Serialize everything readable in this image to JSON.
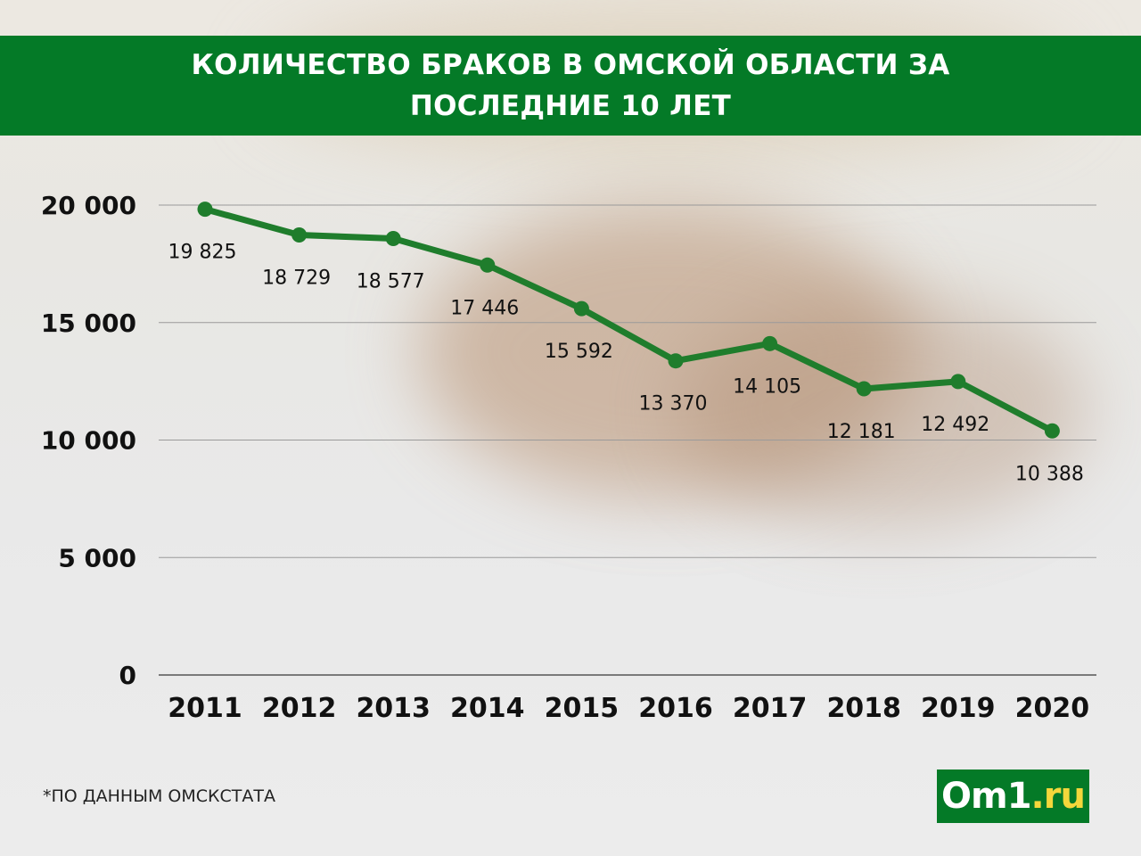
{
  "header": {
    "title_line1": "КОЛИЧЕСТВО БРАКОВ В ОМСКОЙ ОБЛАСТИ ЗА",
    "title_line2": "ПОСЛЕДНИЕ 10 ЛЕТ"
  },
  "footer": {
    "source_note": "*ПО ДАННЫМ ОМСКСТАТА",
    "logo_main": "Om1",
    "logo_accent": ".ru"
  },
  "colors": {
    "title_bg": "#047a27",
    "line": "#1f7d2c",
    "logo_accent": "#f4d73b"
  },
  "chart_data": {
    "type": "line",
    "title": "КОЛИЧЕСТВО БРАКОВ В ОМСКОЙ ОБЛАСТИ ЗА ПОСЛЕДНИЕ 10 ЛЕТ",
    "categories": [
      "2011",
      "2012",
      "2013",
      "2014",
      "2015",
      "2016",
      "2017",
      "2018",
      "2019",
      "2020"
    ],
    "values": [
      19825,
      18729,
      18577,
      17446,
      15592,
      13370,
      14105,
      12181,
      12492,
      10388
    ],
    "value_labels": [
      "19 825",
      "18 729",
      "18 577",
      "17 446",
      "15 592",
      "13 370",
      "14 105",
      "12 181",
      "12 492",
      "10 388"
    ],
    "y_ticks": [
      0,
      5000,
      10000,
      15000,
      20000
    ],
    "y_tick_labels": [
      "0",
      "5 000",
      "10 000",
      "15 000",
      "20 000"
    ],
    "ylim": [
      0,
      20000
    ],
    "xlabel": "",
    "ylabel": "",
    "grid": true,
    "legend": "none"
  }
}
